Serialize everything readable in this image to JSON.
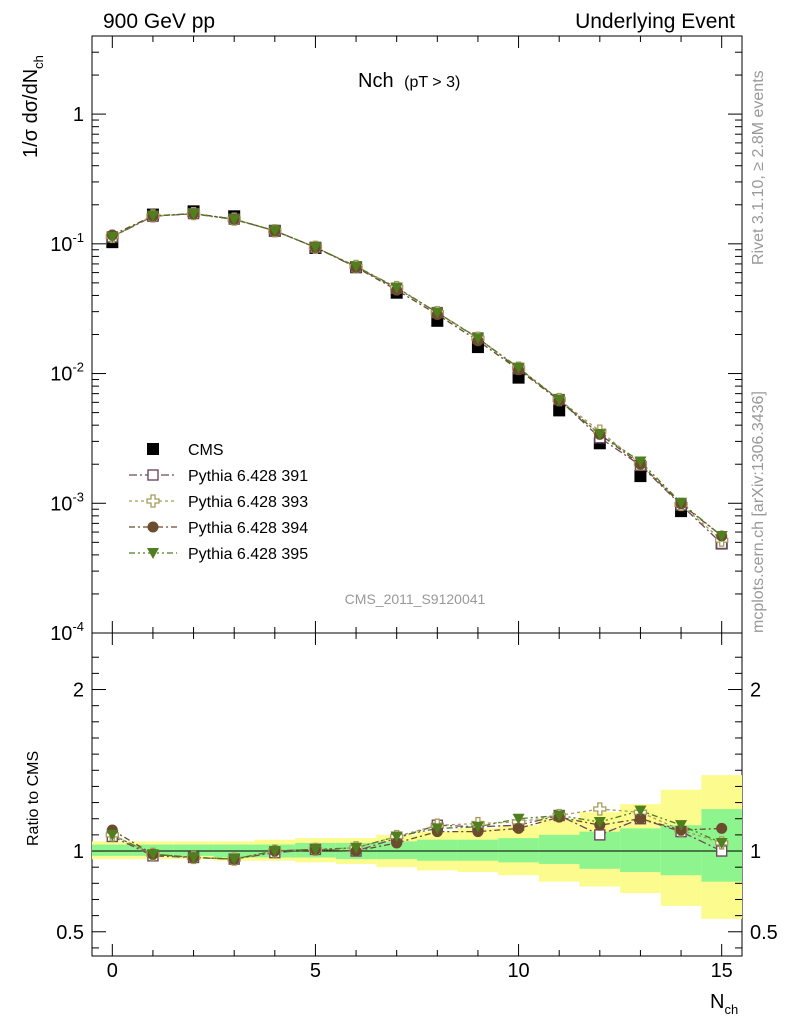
{
  "header": {
    "left": "900 GeV pp",
    "right": "Underlying Event"
  },
  "plot_title": {
    "main": "Nch",
    "sub": "(pT >  3)"
  },
  "side_texts": {
    "rivet": "Rivet 3.1.10, ≥ 2.8M events",
    "mcplots": "mcplots.cern.ch [arXiv:1306.3436]"
  },
  "watermark": "CMS_2011_S9120041",
  "axes": {
    "top_ylabel": "1/σ dσ/dN",
    "top_ylabel_sub": "ch",
    "ratio_ylabel": "Ratio to CMS",
    "xlabel": "N",
    "xlabel_sub": "ch"
  },
  "colors": {
    "data": "#000000",
    "band_stat": "#8ef58e",
    "band_total": "#fbfb8e",
    "p391": "#6e4a5e",
    "p393": "#a89a5a",
    "p394": "#6b4c2c",
    "p395": "#4f7f1f"
  },
  "chart_data": [
    {
      "type": "scatter",
      "panel": "main",
      "yscale": "log",
      "xlim": [
        -0.5,
        15.5
      ],
      "ylim": [
        0.0001,
        4
      ],
      "x_ticks": [
        0,
        5,
        10,
        15
      ],
      "y_ticks": [
        {
          "mantissa": "10",
          "exp": "-4",
          "value": 0.0001
        },
        {
          "mantissa": "10",
          "exp": "-3",
          "value": 0.001
        },
        {
          "mantissa": "10",
          "exp": "-2",
          "value": 0.01
        },
        {
          "mantissa": "10",
          "exp": "-1",
          "value": 0.1
        },
        {
          "mantissa": "1",
          "exp": "",
          "value": 1
        }
      ],
      "x": [
        0,
        1,
        2,
        3,
        4,
        5,
        6,
        7,
        8,
        9,
        10,
        11,
        12,
        13,
        14,
        15
      ],
      "series": [
        {
          "name": "CMS",
          "marker": "square-filled",
          "color_key": "data",
          "values": [
            0.103,
            0.168,
            0.178,
            0.163,
            0.126,
            0.093,
            0.066,
            0.042,
            0.0255,
            0.016,
            0.0093,
            0.0052,
            0.0029,
            0.00162,
            0.00087,
            0.00049
          ]
        },
        {
          "name": "Pythia 6.428 391",
          "marker": "square-open",
          "color_key": "p391",
          "values": [
            0.113,
            0.163,
            0.171,
            0.155,
            0.126,
            0.094,
            0.066,
            0.0455,
            0.0295,
            0.0188,
            0.0109,
            0.0063,
            0.0032,
            0.00196,
            0.00097,
            0.00049
          ]
        },
        {
          "name": "Pythia 6.428 393",
          "marker": "cross-open",
          "color_key": "p393",
          "values": [
            0.114,
            0.164,
            0.171,
            0.155,
            0.126,
            0.094,
            0.067,
            0.046,
            0.0295,
            0.0187,
            0.011,
            0.0063,
            0.0036,
            0.00202,
            0.00098,
            0.00052
          ]
        },
        {
          "name": "Pythia 6.428 394",
          "marker": "circle-filled",
          "color_key": "p394",
          "values": [
            0.117,
            0.164,
            0.171,
            0.155,
            0.126,
            0.094,
            0.066,
            0.044,
            0.0285,
            0.0179,
            0.0107,
            0.0062,
            0.0034,
            0.002,
            0.00099,
            0.00056
          ]
        },
        {
          "name": "Pythia 6.428 395",
          "marker": "triangle-down-filled",
          "color_key": "p395",
          "values": [
            0.113,
            0.165,
            0.17,
            0.154,
            0.126,
            0.094,
            0.067,
            0.046,
            0.0295,
            0.0187,
            0.0111,
            0.0063,
            0.0034,
            0.0021,
            0.00101,
            0.00056
          ]
        }
      ]
    },
    {
      "type": "scatter",
      "panel": "ratio",
      "xlim": [
        -0.5,
        15.5
      ],
      "ylim": [
        0.35,
        2.35
      ],
      "x_ticks": [
        0,
        5,
        10,
        15
      ],
      "y_ticks": [
        0.5,
        1,
        2
      ],
      "x": [
        0,
        1,
        2,
        3,
        4,
        5,
        6,
        7,
        8,
        9,
        10,
        11,
        12,
        13,
        14,
        15
      ],
      "bands": {
        "total": [
          [
            0.95,
            1.06
          ],
          [
            0.95,
            1.06
          ],
          [
            0.95,
            1.06
          ],
          [
            0.94,
            1.06
          ],
          [
            0.94,
            1.07
          ],
          [
            0.93,
            1.08
          ],
          [
            0.92,
            1.08
          ],
          [
            0.9,
            1.1
          ],
          [
            0.88,
            1.12
          ],
          [
            0.87,
            1.14
          ],
          [
            0.85,
            1.16
          ],
          [
            0.81,
            1.2
          ],
          [
            0.78,
            1.24
          ],
          [
            0.74,
            1.29
          ],
          [
            0.66,
            1.38
          ],
          [
            0.58,
            1.47
          ]
        ],
        "stat": [
          [
            0.97,
            1.04
          ],
          [
            0.97,
            1.04
          ],
          [
            0.97,
            1.04
          ],
          [
            0.96,
            1.04
          ],
          [
            0.96,
            1.04
          ],
          [
            0.96,
            1.05
          ],
          [
            0.95,
            1.05
          ],
          [
            0.95,
            1.06
          ],
          [
            0.94,
            1.07
          ],
          [
            0.94,
            1.07
          ],
          [
            0.93,
            1.08
          ],
          [
            0.92,
            1.1
          ],
          [
            0.89,
            1.12
          ],
          [
            0.87,
            1.14
          ],
          [
            0.85,
            1.16
          ],
          [
            0.81,
            1.26
          ]
        ]
      },
      "series": [
        {
          "name": "Pythia 6.428 391",
          "values": [
            1.09,
            0.97,
            0.96,
            0.95,
            0.99,
            1.01,
            1.0,
            1.08,
            1.16,
            1.15,
            1.16,
            1.22,
            1.1,
            1.2,
            1.12,
            1.0
          ]
        },
        {
          "name": "Pythia 6.428 393",
          "values": [
            1.1,
            0.98,
            0.96,
            0.95,
            1.0,
            1.01,
            1.02,
            1.09,
            1.16,
            1.17,
            1.18,
            1.22,
            1.26,
            1.24,
            1.13,
            1.05
          ]
        },
        {
          "name": "Pythia 6.428 394",
          "values": [
            1.13,
            0.98,
            0.96,
            0.95,
            1.0,
            1.01,
            1.0,
            1.05,
            1.12,
            1.12,
            1.14,
            1.21,
            1.16,
            1.2,
            1.13,
            1.14
          ]
        },
        {
          "name": "Pythia 6.428 395",
          "values": [
            1.1,
            0.98,
            0.96,
            0.95,
            1.0,
            1.01,
            1.02,
            1.09,
            1.14,
            1.15,
            1.2,
            1.22,
            1.18,
            1.25,
            1.16,
            1.05
          ]
        }
      ]
    }
  ]
}
